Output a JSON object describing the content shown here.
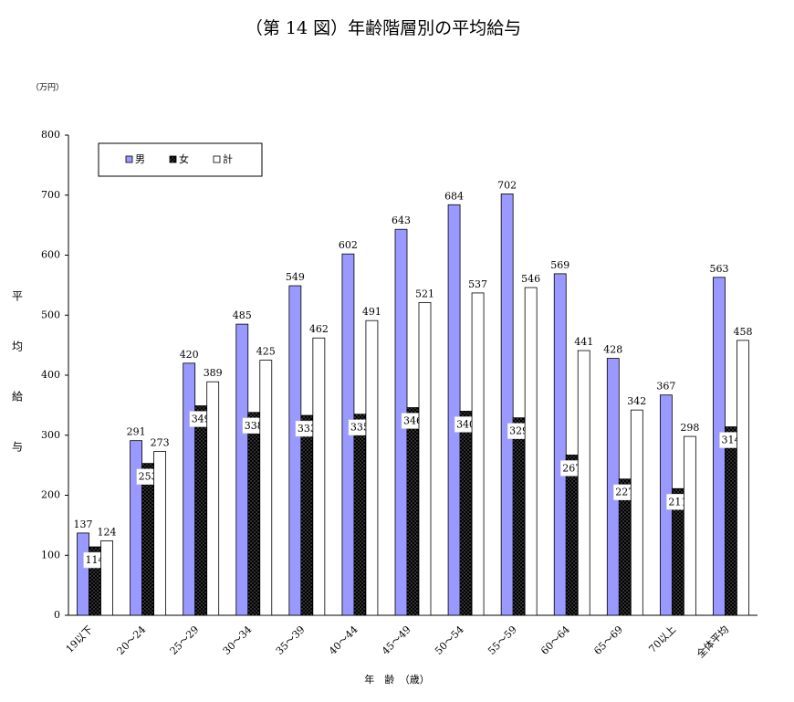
{
  "chart_data": {
    "type": "bar",
    "title": "（第 14 図）年齢階層別の平均給与",
    "unit_label": "（万円）",
    "y_axis_label": "平均給与",
    "x_axis_label": "年　齢　（歳）",
    "categories": [
      "19以下",
      "20～24",
      "25～29",
      "30～34",
      "35～39",
      "40～44",
      "45～49",
      "50～54",
      "55～59",
      "60～64",
      "65～69",
      "70以上",
      "全体平均"
    ],
    "series": [
      {
        "name": "男",
        "color": "#9999ff",
        "values": [
          137,
          291,
          420,
          485,
          549,
          602,
          643,
          684,
          702,
          569,
          428,
          367,
          563
        ]
      },
      {
        "name": "女",
        "color": "#000000",
        "values": [
          114,
          253,
          349,
          338,
          333,
          335,
          346,
          340,
          329,
          267,
          227,
          211,
          314
        ]
      },
      {
        "name": "計",
        "color": "#ffffff",
        "values": [
          124,
          273,
          389,
          425,
          462,
          491,
          521,
          537,
          546,
          441,
          342,
          298,
          458
        ]
      }
    ],
    "ylim": [
      0,
      800
    ],
    "yticks": [
      0,
      100,
      200,
      300,
      400,
      500,
      600,
      700,
      800
    ],
    "legend": "upper left"
  }
}
